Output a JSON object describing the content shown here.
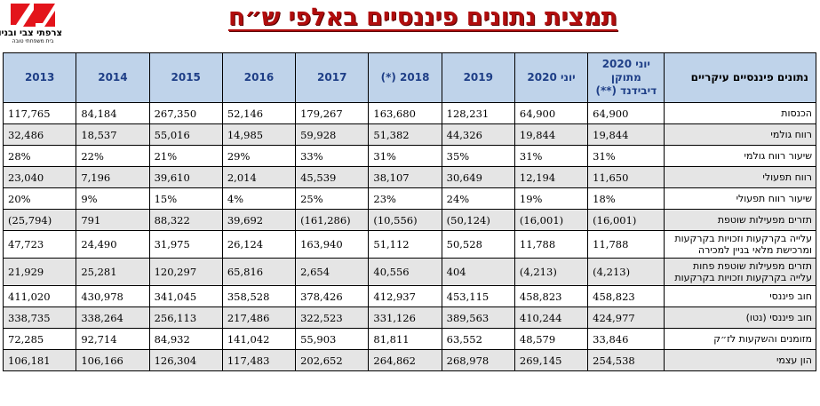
{
  "logo": {
    "name": "צרפתי צבי ובניו",
    "tagline": "בית משפחתי טובה"
  },
  "title": "תמצית נתונים פיננסיים באלפי ש״ח",
  "colors": {
    "title": "#b10d0d",
    "header_bg": "#bfd3ea",
    "header_text": "#1f3f87",
    "alt_row": "#e5e5e5",
    "logo": "#e3141b"
  },
  "table": {
    "label_header": "נתונים פיננסיים עיקריים",
    "columns": [
      "יוני 2020 מתוקן דיבידנד (**)",
      "יוני 2020",
      "2019",
      "2018 (*)",
      "2017",
      "2016",
      "2015",
      "2014",
      "2013"
    ],
    "rows": [
      {
        "label": "הכנסות",
        "values": [
          "64,900",
          "64,900",
          "128,231",
          "163,680",
          "179,267",
          "52,146",
          "267,350",
          "84,184",
          "117,765"
        ]
      },
      {
        "label": "רווח גולמי",
        "values": [
          "19,844",
          "19,844",
          "44,326",
          "51,382",
          "59,928",
          "14,985",
          "55,016",
          "18,537",
          "32,486"
        ]
      },
      {
        "label": "שיעור רווח גולמי",
        "values": [
          "31%",
          "31%",
          "35%",
          "31%",
          "33%",
          "29%",
          "21%",
          "22%",
          "28%"
        ]
      },
      {
        "label": "רווח תפעולי",
        "values": [
          "11,650",
          "12,194",
          "30,649",
          "38,107",
          "45,539",
          "2,014",
          "39,610",
          "7,196",
          "23,040"
        ]
      },
      {
        "label": "שיעור רווח תפעולי",
        "values": [
          "18%",
          "19%",
          "24%",
          "23%",
          "25%",
          "4%",
          "15%",
          "9%",
          "20%"
        ]
      },
      {
        "label": "תזרים מפעילות שוטפת",
        "values": [
          "(16,001)",
          "(16,001)",
          "(50,124)",
          "(10,556)",
          "(161,286)",
          "39,692",
          "88,322",
          "791",
          "(25,794)"
        ]
      },
      {
        "label": "עלייה בקרקעות וזכויות בקרקעות ומרכישת מלאי בניין למכירה",
        "values": [
          "11,788",
          "11,788",
          "50,528",
          "51,112",
          "163,940",
          "26,124",
          "31,975",
          "24,490",
          "47,723"
        ]
      },
      {
        "label": "תזרים מפעילות שוטפת פחות עלייה בקרקעות וזכויות בקרקעות",
        "values": [
          "(4,213)",
          "(4,213)",
          "404",
          "40,556",
          "2,654",
          "65,816",
          "120,297",
          "25,281",
          "21,929"
        ]
      },
      {
        "label": "חוב פיננסי",
        "values": [
          "458,823",
          "458,823",
          "453,115",
          "412,937",
          "378,426",
          "358,528",
          "341,045",
          "430,978",
          "411,020"
        ]
      },
      {
        "label": "חוב פיננסי (נטו)",
        "values": [
          "424,977",
          "410,244",
          "389,563",
          "331,126",
          "322,523",
          "217,486",
          "256,113",
          "338,264",
          "338,735"
        ]
      },
      {
        "label": "מזומנים והשקעות לז״ק",
        "values": [
          "33,846",
          "48,579",
          "63,552",
          "81,811",
          "55,903",
          "141,042",
          "84,932",
          "92,714",
          "72,285"
        ]
      },
      {
        "label": "הון עצמי",
        "values": [
          "254,538",
          "269,145",
          "268,978",
          "264,862",
          "202,652",
          "117,483",
          "126,304",
          "106,166",
          "106,181"
        ]
      }
    ]
  }
}
